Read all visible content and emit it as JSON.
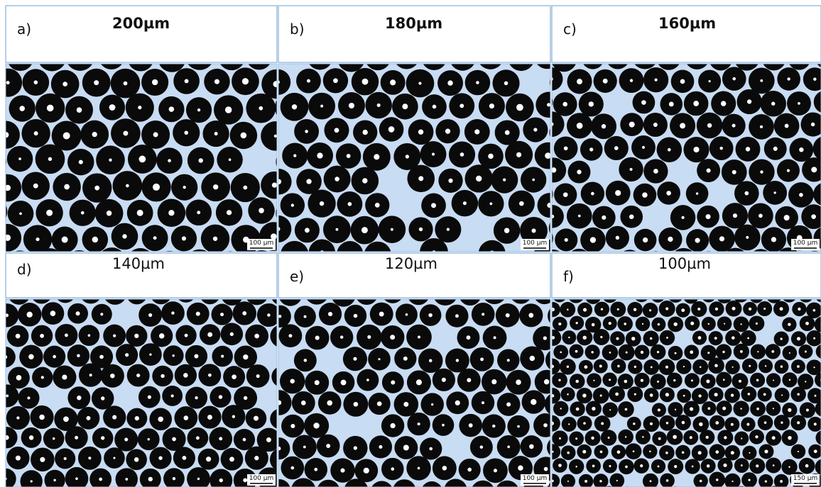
{
  "panels": [
    {
      "label": "a)",
      "title": "200µm",
      "scale_bar": "100 µm"
    },
    {
      "label": "b)",
      "title": "180µm",
      "scale_bar": "100 µm"
    },
    {
      "label": "c)",
      "title": "160µm",
      "scale_bar": "100 µm"
    },
    {
      "label": "d)",
      "title": "140µm",
      "scale_bar": "100 µm"
    },
    {
      "label": "e)",
      "title": "120µm",
      "scale_bar": "100 µm"
    },
    {
      "label": "f)",
      "title": "100µm",
      "scale_bar": "150 µm"
    }
  ]
}
